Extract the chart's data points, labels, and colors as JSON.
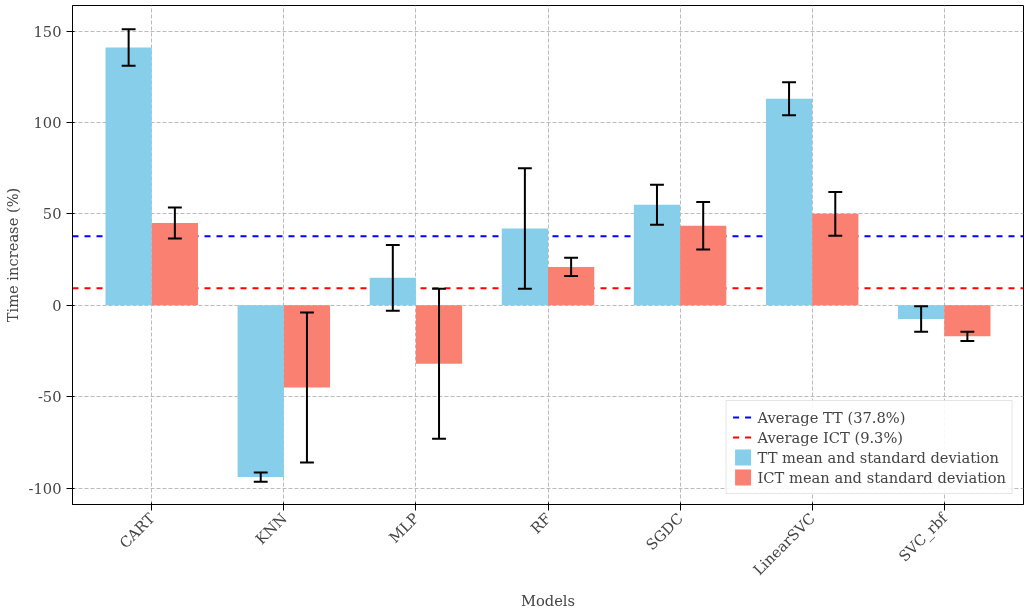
{
  "chart_data": {
    "type": "bar",
    "xlabel": "Models",
    "ylabel": "Time increase (%)",
    "categories": [
      "CART",
      "KNN",
      "MLP",
      "RF",
      "SGDC",
      "LinearSVC",
      "SVC_rbf"
    ],
    "series": [
      {
        "name": "TT mean and standard deviation",
        "color": "#87ceeb",
        "values": [
          141,
          -94,
          15,
          42,
          55,
          113,
          -7.5
        ],
        "errors": [
          10,
          2.5,
          18,
          33,
          11,
          9,
          7
        ]
      },
      {
        "name": "ICT mean and standard deviation",
        "color": "#fa8072",
        "values": [
          45,
          -45,
          -32,
          21,
          43.5,
          50,
          -17
        ],
        "errors": [
          8.5,
          41,
          41,
          5,
          13,
          12,
          2.5
        ]
      }
    ],
    "ylim": [
      -109,
      164
    ],
    "yticks": [
      -100,
      -50,
      0,
      50,
      100,
      150
    ],
    "grid": true,
    "legend": "bottom right",
    "ref_lines": [
      {
        "axis": "y",
        "value": 37.8,
        "label": "Average TT (37.8%)",
        "color": "#0000ff",
        "line_style": "dashed"
      },
      {
        "axis": "y",
        "value": 9.3,
        "label": "Average ICT (9.3%)",
        "color": "#ff0000",
        "line_style": "dashed"
      }
    ]
  }
}
